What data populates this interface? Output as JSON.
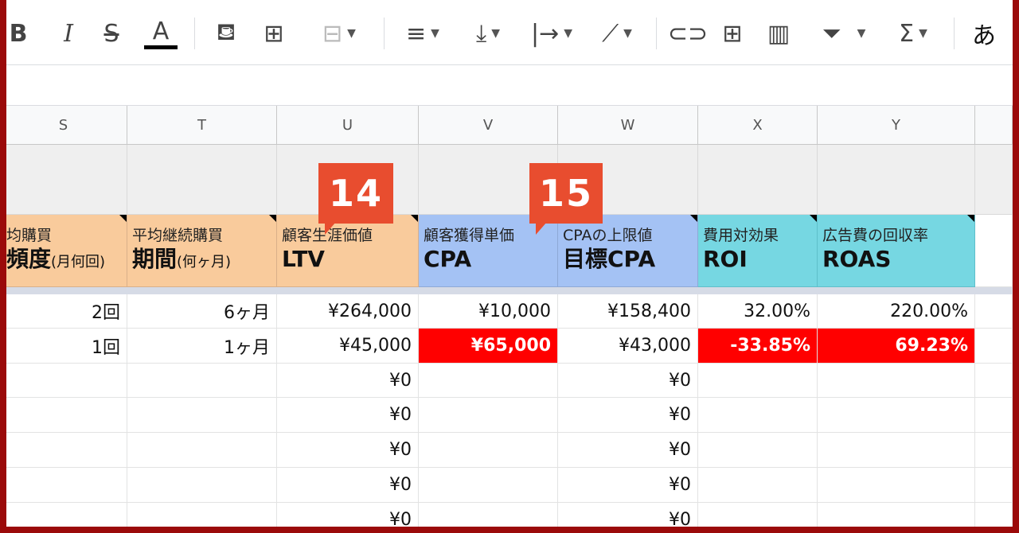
{
  "toolbar": {
    "bold": "B",
    "italic": "I",
    "strike": "S",
    "text_color": "A",
    "input_mode": "あ",
    "icons": [
      "bold-icon",
      "italic-icon",
      "strikethrough-icon",
      "text-color-icon",
      "fill-color-icon",
      "borders-icon",
      "merge-cells-icon",
      "horizontal-align-icon",
      "vertical-align-icon",
      "text-wrap-icon",
      "text-rotation-icon",
      "link-icon",
      "comment-icon",
      "chart-icon",
      "filter-icon",
      "functions-icon"
    ]
  },
  "columns": [
    "S",
    "T",
    "U",
    "V",
    "W",
    "X",
    "Y"
  ],
  "headers": [
    {
      "line1": "均購買",
      "line2": "頻度",
      "sub": "(月何回)"
    },
    {
      "line1": "平均継続購買",
      "line2": "期間",
      "sub": "(何ヶ月)"
    },
    {
      "line1": "顧客生涯価値",
      "line2": "LTV",
      "sub": ""
    },
    {
      "line1": "顧客獲得単価",
      "line2": "CPA",
      "sub": ""
    },
    {
      "line1": "CPAの上限値",
      "line2": "目標CPA",
      "sub": ""
    },
    {
      "line1": "費用対効果",
      "line2": "ROI",
      "sub": ""
    },
    {
      "line1": "広告費の回収率",
      "line2": "ROAS",
      "sub": ""
    }
  ],
  "badges": [
    "14",
    "15"
  ],
  "rows": [
    [
      "2回",
      "6ヶ月",
      "¥264,000",
      "¥10,000",
      "¥158,400",
      "32.00%",
      "220.00%"
    ],
    [
      "1回",
      "1ヶ月",
      "¥45,000",
      "¥65,000",
      "¥43,000",
      "-33.85%",
      "69.23%"
    ],
    [
      "",
      "",
      "¥0",
      "",
      "¥0",
      "",
      ""
    ],
    [
      "",
      "",
      "¥0",
      "",
      "¥0",
      "",
      ""
    ],
    [
      "",
      "",
      "¥0",
      "",
      "¥0",
      "",
      ""
    ],
    [
      "",
      "",
      "¥0",
      "",
      "¥0",
      "",
      ""
    ],
    [
      "",
      "",
      "¥0",
      "",
      "¥0",
      "",
      ""
    ]
  ],
  "highlighted": [
    [
      1,
      3
    ],
    [
      1,
      5
    ],
    [
      1,
      6
    ]
  ],
  "colors": {
    "header_peach": "#f9cb9c",
    "header_blue": "#a4c2f4",
    "header_cyan": "#76d7e2",
    "alert_red": "#ff0000",
    "badge": "#e84d2f",
    "frame": "#9b0a0a"
  }
}
